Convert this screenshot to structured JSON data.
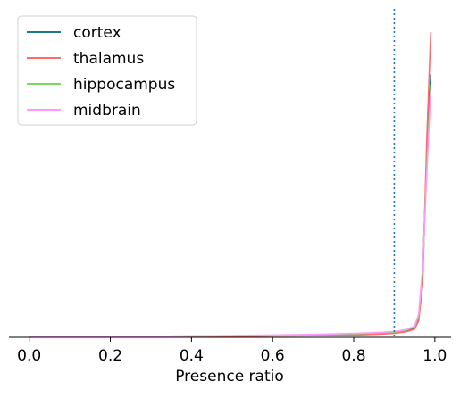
{
  "chart_data": {
    "type": "line",
    "title": "",
    "xlabel": "Presence ratio",
    "ylabel": "",
    "xlim": [
      -0.05,
      1.04
    ],
    "ylim": [
      0,
      1
    ],
    "xticks": [
      "0.0",
      "0.2",
      "0.4",
      "0.6",
      "0.8",
      "1.0"
    ],
    "xtick_values": [
      0.0,
      0.2,
      0.4,
      0.6,
      0.8,
      1.0
    ],
    "yaxis_visible": false,
    "grid": false,
    "legend_position": "top-left",
    "threshold": {
      "x": 0.9,
      "style": "dotted",
      "color": "#1f77b4"
    },
    "series": [
      {
        "name": "cortex",
        "color": "#1a7a8a",
        "x": [
          0.0,
          0.1,
          0.2,
          0.3,
          0.4,
          0.5,
          0.6,
          0.7,
          0.8,
          0.85,
          0.9,
          0.93,
          0.95,
          0.96,
          0.97,
          0.98,
          0.99
        ],
        "y": [
          0.001,
          0.001,
          0.002,
          0.002,
          0.003,
          0.004,
          0.005,
          0.007,
          0.01,
          0.012,
          0.015,
          0.02,
          0.03,
          0.06,
          0.19,
          0.55,
          0.8
        ]
      },
      {
        "name": "thalamus",
        "color": "#ff6b6b",
        "x": [
          0.0,
          0.1,
          0.2,
          0.3,
          0.4,
          0.5,
          0.6,
          0.7,
          0.8,
          0.85,
          0.9,
          0.93,
          0.95,
          0.96,
          0.97,
          0.98,
          0.99
        ],
        "y": [
          0.001,
          0.001,
          0.001,
          0.002,
          0.002,
          0.003,
          0.004,
          0.005,
          0.007,
          0.009,
          0.012,
          0.017,
          0.025,
          0.05,
          0.16,
          0.6,
          0.93
        ]
      },
      {
        "name": "hippocampus",
        "color": "#7ed957",
        "x": [
          0.0,
          0.1,
          0.2,
          0.3,
          0.4,
          0.5,
          0.6,
          0.7,
          0.8,
          0.85,
          0.9,
          0.93,
          0.95,
          0.96,
          0.97,
          0.98,
          0.99
        ],
        "y": [
          0.002,
          0.002,
          0.002,
          0.003,
          0.004,
          0.005,
          0.006,
          0.008,
          0.011,
          0.013,
          0.016,
          0.022,
          0.032,
          0.065,
          0.2,
          0.52,
          0.77
        ]
      },
      {
        "name": "midbrain",
        "color": "#ff99ff",
        "x": [
          0.0,
          0.1,
          0.2,
          0.3,
          0.4,
          0.5,
          0.6,
          0.7,
          0.8,
          0.85,
          0.9,
          0.93,
          0.95,
          0.96,
          0.97,
          0.98,
          0.99
        ],
        "y": [
          0.002,
          0.002,
          0.003,
          0.003,
          0.004,
          0.005,
          0.007,
          0.009,
          0.012,
          0.014,
          0.018,
          0.024,
          0.034,
          0.07,
          0.21,
          0.5,
          0.75
        ]
      }
    ]
  }
}
